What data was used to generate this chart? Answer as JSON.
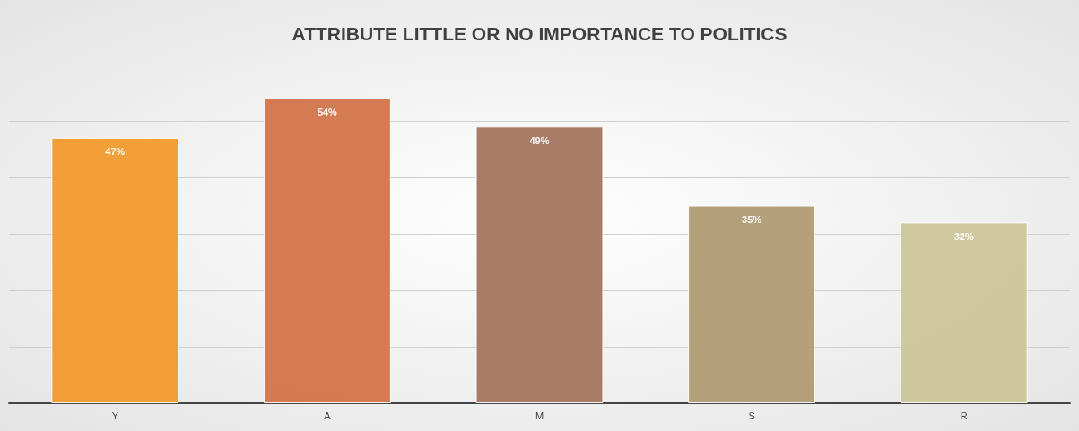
{
  "chart_data": {
    "type": "bar",
    "title": "ATTRIBUTE LITTLE OR NO IMPORTANCE TO POLITICS",
    "categories": [
      "Y",
      "A",
      "M",
      "S",
      "R"
    ],
    "values": [
      47,
      54,
      49,
      35,
      32
    ],
    "colors": [
      "#ef9a2e",
      "#d2744a",
      "#a47560",
      "#b09c74",
      "#cdc699"
    ],
    "value_labels": [
      "47%",
      "54%",
      "49%",
      "35%",
      "32%"
    ],
    "ylim": [
      0,
      60
    ],
    "yticks": [
      {
        "value": 0,
        "label": null
      },
      {
        "value": 10,
        "label": null
      },
      {
        "value": 20,
        "label": null
      },
      {
        "value": 30,
        "label": null
      },
      {
        "value": 40,
        "label": null
      },
      {
        "value": 50,
        "label": null
      },
      {
        "value": 60,
        "label": null
      }
    ],
    "grid": "y",
    "tick_labels": "x"
  }
}
